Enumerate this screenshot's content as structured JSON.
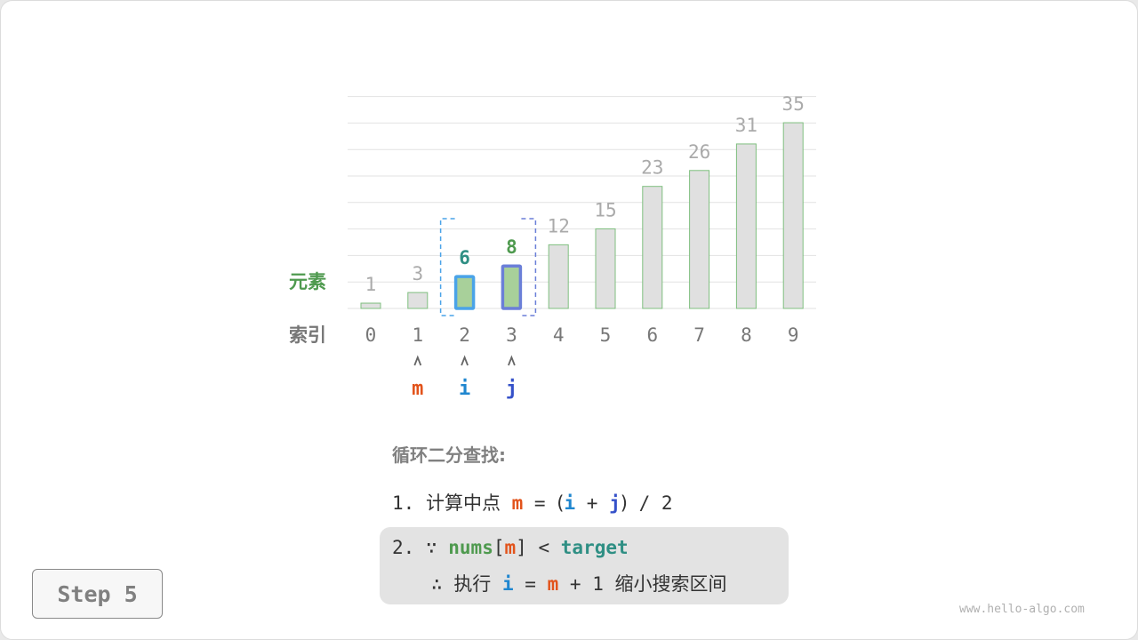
{
  "chart_data": {
    "type": "bar",
    "row_labels": {
      "elements": "元素",
      "index": "索引"
    },
    "categories": [
      "0",
      "1",
      "2",
      "3",
      "4",
      "5",
      "6",
      "7",
      "8",
      "9"
    ],
    "values": [
      1,
      3,
      6,
      8,
      12,
      15,
      23,
      26,
      31,
      35
    ],
    "highlight": {
      "i": 2,
      "j": 3
    },
    "pointers": [
      {
        "label": "m",
        "index": 1
      },
      {
        "label": "i",
        "index": 2
      },
      {
        "label": "j",
        "index": 3
      }
    ],
    "pointer_glyph": "^",
    "colors": {
      "bar_fill": "#e0e0e0",
      "bar_stroke": "#7fbf7f",
      "active_fill": "#a8d09a",
      "i_color": "#1f86cf",
      "j_color": "#3551c9",
      "m_color": "#e2531b",
      "i_border": "#4aa3e8",
      "j_border": "#6b7fd8"
    },
    "grid": true
  },
  "algorithm": {
    "title": "循环二分查找:",
    "step1": {
      "num": "1.",
      "text": "计算中点",
      "m": "m",
      "eq": "=",
      "lp": "(",
      "i": "i",
      "plus": "+",
      "j": "j",
      "rp": ")",
      "div": "/ 2"
    },
    "step2": {
      "num": "2.",
      "because": "∵",
      "nums": "nums",
      "lb": "[",
      "m": "m",
      "rb": "]",
      "lt": "<",
      "target": "target"
    },
    "step3": {
      "therefore": "∴",
      "exec": "执行",
      "i": "i",
      "eq": "=",
      "m": "m",
      "plus": "+ 1",
      "rest": "缩小搜索区间"
    }
  },
  "step_button": "Step 5",
  "watermark": "www.hello-algo.com"
}
